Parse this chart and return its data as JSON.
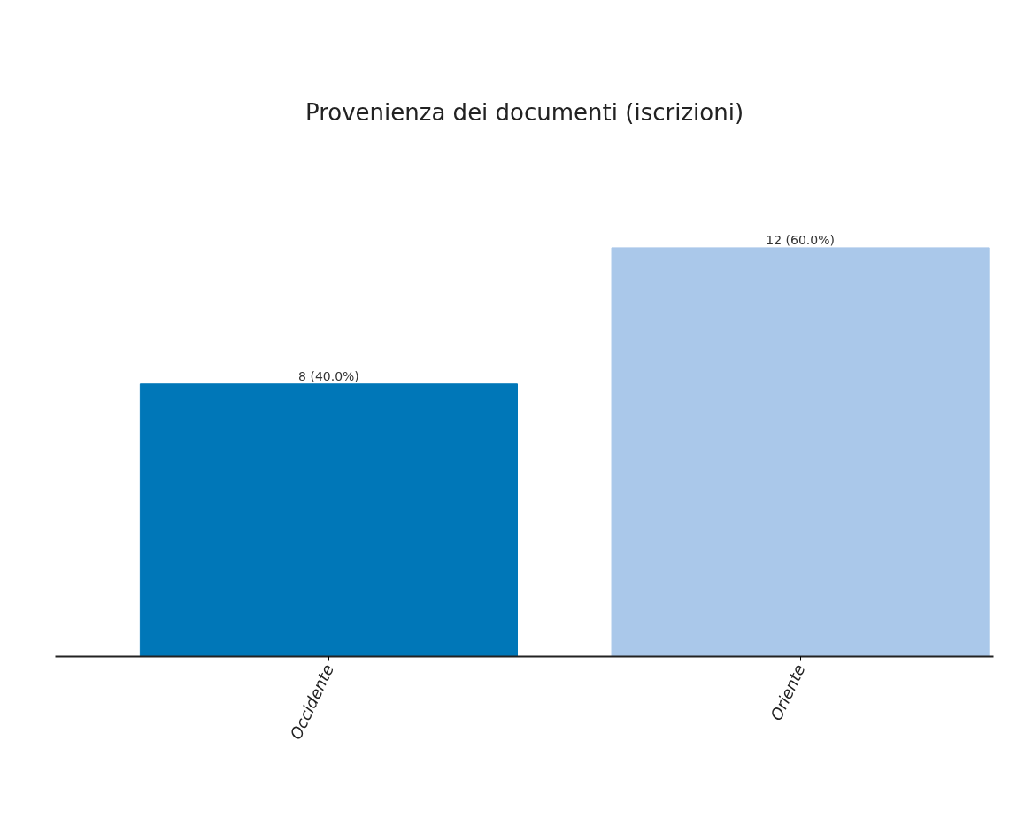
{
  "chart_data": {
    "type": "bar",
    "title": "Provenienza dei documenti (iscrizioni)",
    "categories": [
      "Occidente",
      "Oriente"
    ],
    "values": [
      8,
      12
    ],
    "colors": [
      "#0077b8",
      "#aac8ea"
    ],
    "value_labels": [
      "8 (40.0%)",
      "12 (60.0%)"
    ],
    "grid": false
  }
}
